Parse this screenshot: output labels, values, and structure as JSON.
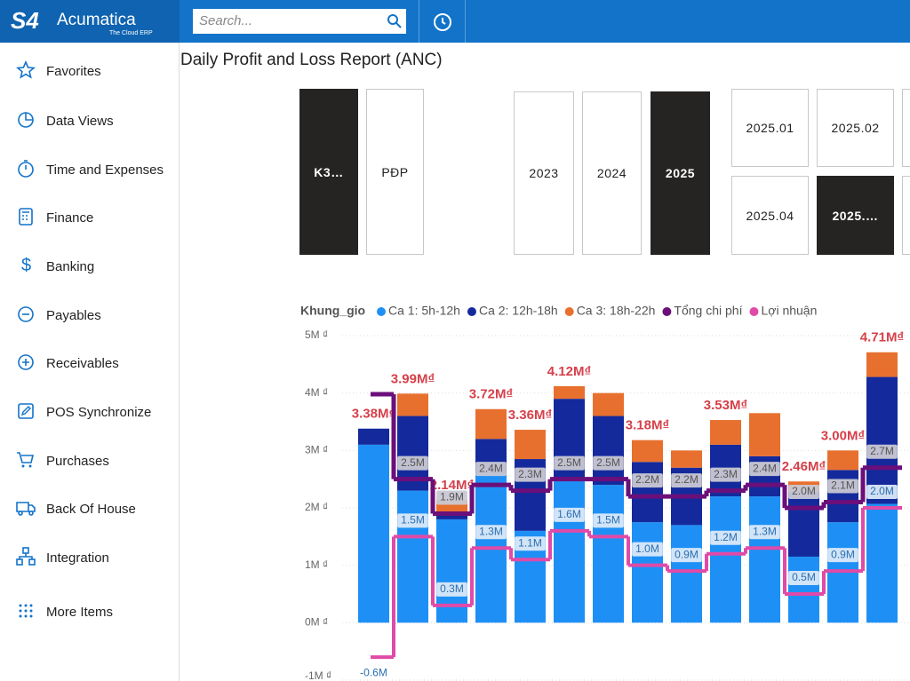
{
  "brand": {
    "badge": "S4",
    "name": "Acumatica",
    "tagline": "The Cloud ERP"
  },
  "search_placeholder": "Search...",
  "nav": [
    "Favorites",
    "Data Views",
    "Time and Expenses",
    "Finance",
    "Banking",
    "Payables",
    "Receivables",
    "POS Synchronize",
    "Purchases",
    "Back Of House",
    "Integration",
    "More Items"
  ],
  "report_title": "Daily Profit and Loss Report (ANC)",
  "slicers": [
    {
      "label": "K3…",
      "selected": true
    },
    {
      "label": "PĐP",
      "selected": false
    },
    {
      "label": "2023",
      "selected": false
    },
    {
      "label": "2024",
      "selected": false
    },
    {
      "label": "2025",
      "selected": true
    },
    {
      "label": "2025.01",
      "selected": false
    },
    {
      "label": "2025.02",
      "selected": false
    },
    {
      "label": "2025.04",
      "selected": false
    },
    {
      "label": "2025.…",
      "selected": true
    }
  ],
  "chart_data": {
    "type": "stacked_bar_step_line",
    "legend_title": "Khung_gio",
    "categories": [
      null,
      null,
      null,
      null,
      null,
      null,
      null,
      null,
      null,
      null,
      null,
      null,
      null,
      null
    ],
    "series": [
      {
        "name": "Ca 1: 5h-12h",
        "color": "#1e90f5",
        "values": [
          3.1,
          2.3,
          1.8,
          2.6,
          1.6,
          2.5,
          2.4,
          1.75,
          1.7,
          2.2,
          2.2,
          1.15,
          1.75,
          2.07
        ]
      },
      {
        "name": "Ca 2: 12h-18h",
        "color": "#142a9c",
        "values": [
          0.28,
          1.3,
          0.1,
          0.6,
          1.25,
          1.4,
          1.2,
          1.05,
          1.0,
          0.9,
          0.7,
          1.14,
          0.91,
          2.21
        ]
      },
      {
        "name": "Ca 3: 18h-22h",
        "color": "#e8702f",
        "values": [
          0,
          0.39,
          0.24,
          0.52,
          0.51,
          0.22,
          0.4,
          0.38,
          0.3,
          0.43,
          0.75,
          0.17,
          0.34,
          0.43
        ]
      },
      {
        "name": "Tổng chi phí",
        "color": "#6b0f7a",
        "kind": "step",
        "values": [
          3.98,
          2.5,
          1.9,
          2.4,
          2.3,
          2.5,
          2.5,
          2.2,
          2.2,
          2.3,
          2.4,
          2.0,
          2.1,
          2.7
        ],
        "value_labels": [
          null,
          "2.5M",
          "1.9M",
          "2.4M",
          "2.3M",
          "2.5M",
          "2.5M",
          "2.2M",
          "2.2M",
          "2.3M",
          "2.4M",
          "2.0M",
          "2.1M",
          "2.7M"
        ]
      },
      {
        "name": "Lợi nhuận",
        "color": "#e04aa8",
        "kind": "step",
        "values": [
          -0.6,
          1.5,
          0.3,
          1.3,
          1.1,
          1.6,
          1.5,
          1.0,
          0.9,
          1.2,
          1.3,
          0.5,
          0.9,
          2.0
        ],
        "value_labels": [
          "-0.6M",
          "1.5M",
          "0.3M",
          "1.3M",
          "1.1M",
          "1.6M",
          "1.5M",
          "1.0M",
          "0.9M",
          "1.2M",
          "1.3M",
          "0.5M",
          "0.9M",
          "2.0M"
        ]
      }
    ],
    "totals": [
      {
        "value": 3.38,
        "label": "3.38M₫"
      },
      {
        "value": 3.99,
        "label": "3.99M₫"
      },
      {
        "value": 2.14,
        "label": "2.14M₫"
      },
      {
        "value": 3.72,
        "label": "3.72M₫"
      },
      {
        "value": 3.36,
        "label": "3.36M₫"
      },
      {
        "value": 4.12,
        "label": "4.12M₫"
      },
      null,
      {
        "value": 3.18,
        "label": "3.18M₫"
      },
      null,
      {
        "value": 3.53,
        "label": "3.53M₫"
      },
      null,
      {
        "value": 2.46,
        "label": "2.46M₫"
      },
      {
        "value": 3.0,
        "label": "3.00M₫"
      },
      {
        "value": 4.71,
        "label": "4.71M₫"
      }
    ],
    "ylim": [
      -1,
      5
    ],
    "yticks": [
      {
        "value": -1,
        "label": "-1M ₫"
      },
      {
        "value": 0,
        "label": "0M ₫"
      },
      {
        "value": 1,
        "label": "1M ₫"
      },
      {
        "value": 2,
        "label": "2M ₫"
      },
      {
        "value": 3,
        "label": "3M ₫"
      },
      {
        "value": 4,
        "label": "4M ₫"
      },
      {
        "value": 5,
        "label": "5M ₫"
      }
    ],
    "grid": true
  }
}
